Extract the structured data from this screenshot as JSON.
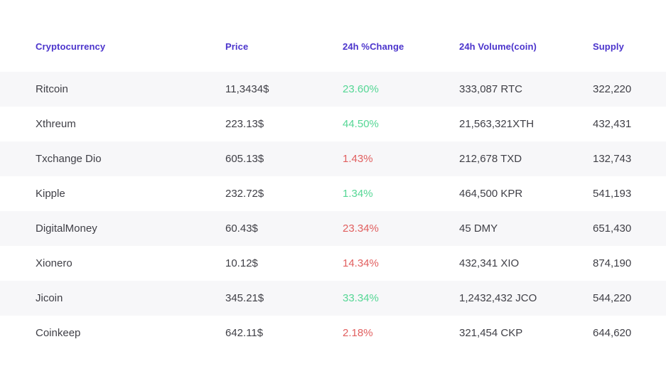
{
  "colors": {
    "header": "#4b34cc",
    "positive": "#55d795",
    "negative": "#e15f5f",
    "row_stripe": "#f7f7f9",
    "text": "#3f3f46"
  },
  "table": {
    "columns": [
      {
        "label": "Cryptocurrency"
      },
      {
        "label": "Price"
      },
      {
        "label": "24h %Change"
      },
      {
        "label": "24h Volume(coin)"
      },
      {
        "label": "Supply"
      }
    ],
    "rows": [
      {
        "name": "Ritcoin",
        "price": "11,3434$",
        "change": "23.60%",
        "direction": "up",
        "volume": "333,087 RTC",
        "supply": "322,220"
      },
      {
        "name": "Xthreum",
        "price": "223.13$",
        "change": "44.50%",
        "direction": "up",
        "volume": "21,563,321XTH",
        "supply": "432,431"
      },
      {
        "name": "Txchange Dio",
        "price": "605.13$",
        "change": "1.43%",
        "direction": "down",
        "volume": "212,678 TXD",
        "supply": "132,743"
      },
      {
        "name": "Kipple",
        "price": "232.72$",
        "change": "1.34%",
        "direction": "up",
        "volume": "464,500 KPR",
        "supply": "541,193"
      },
      {
        "name": "DigitalMoney",
        "price": "60.43$",
        "change": "23.34%",
        "direction": "down",
        "volume": "45 DMY",
        "supply": "651,430"
      },
      {
        "name": "Xionero",
        "price": "10.12$",
        "change": "14.34%",
        "direction": "down",
        "volume": "432,341 XIO",
        "supply": "874,190"
      },
      {
        "name": "Jicoin",
        "price": "345.21$",
        "change": "33.34%",
        "direction": "up",
        "volume": "1,2432,432 JCO",
        "supply": "544,220"
      },
      {
        "name": "Coinkeep",
        "price": "642.11$",
        "change": "2.18%",
        "direction": "down",
        "volume": "321,454 CKP",
        "supply": "644,620"
      }
    ]
  }
}
